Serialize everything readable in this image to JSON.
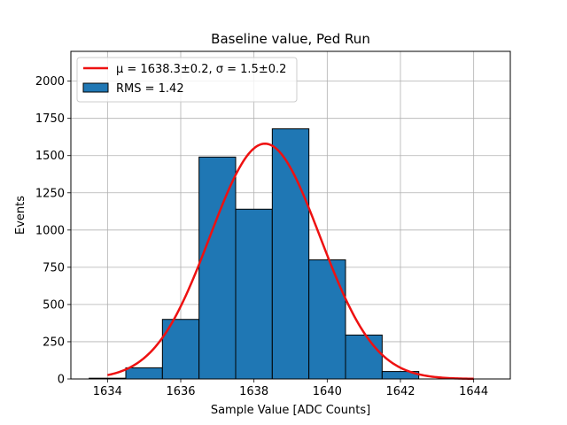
{
  "chart_data": {
    "type": "bar",
    "title": "Baseline value, Ped Run",
    "xlabel": "Sample Value [ADC Counts]",
    "ylabel": "Events",
    "xlim": [
      1633,
      1645
    ],
    "ylim": [
      0,
      2200
    ],
    "xticks": [
      1634,
      1636,
      1638,
      1640,
      1642,
      1644
    ],
    "yticks": [
      0,
      250,
      500,
      750,
      1000,
      1250,
      1500,
      1750,
      2000
    ],
    "grid": true,
    "legend_placement": "top-left",
    "histogram": {
      "name": "RMS = 1.42",
      "color": "#1f77b4",
      "edgecolor": "#000000",
      "bins": [
        {
          "x0": 1633.5,
          "x1": 1634.5,
          "count": 5
        },
        {
          "x0": 1634.5,
          "x1": 1635.5,
          "count": 75
        },
        {
          "x0": 1635.5,
          "x1": 1636.5,
          "count": 400
        },
        {
          "x0": 1636.5,
          "x1": 1637.5,
          "count": 1490
        },
        {
          "x0": 1637.5,
          "x1": 1638.5,
          "count": 1140
        },
        {
          "x0": 1638.5,
          "x1": 1639.5,
          "count": 1680
        },
        {
          "x0": 1639.5,
          "x1": 1640.5,
          "count": 800
        },
        {
          "x0": 1640.5,
          "x1": 1641.5,
          "count": 295
        },
        {
          "x0": 1641.5,
          "x1": 1642.5,
          "count": 50
        },
        {
          "x0": 1642.5,
          "x1": 1643.5,
          "count": 0
        }
      ]
    },
    "fit": {
      "name": "μ = 1638.3±0.2, σ = 1.5±0.2",
      "color": "#ee1111",
      "mu": 1638.3,
      "sigma": 1.5,
      "amplitude": 1580,
      "x_range": [
        1634,
        1644
      ]
    }
  }
}
